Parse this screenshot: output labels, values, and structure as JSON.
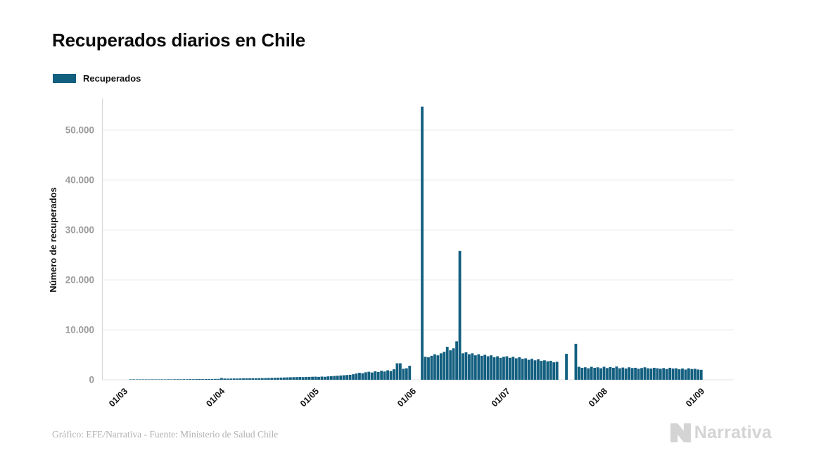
{
  "title": "Recuperados diarios en Chile",
  "legend": {
    "label": "Recuperados",
    "swatch_color": "#135F80"
  },
  "footer": {
    "credit": "Gráfico: EFE/Narrativa - Fuente: Ministerio de Salud Chile"
  },
  "logo": {
    "text": "Narrativa"
  },
  "chart_data": {
    "type": "bar",
    "title": "Recuperados diarios en Chile",
    "xlabel": "",
    "ylabel": "Número de recuperados",
    "series_name": "Recuperados",
    "bar_color": "#135F80",
    "grid": true,
    "legend_position": "top-left",
    "ylim": [
      0,
      56300
    ],
    "y_ticks": [
      0,
      10000,
      20000,
      30000,
      40000,
      50000
    ],
    "y_tick_labels": [
      "0",
      "10.000",
      "20.000",
      "30.000",
      "40.000",
      "50.000"
    ],
    "x_unit": "day",
    "x_range": [
      "01/03",
      "01/09"
    ],
    "x_tick_labels": [
      "01/03",
      "01/04",
      "01/05",
      "01/06",
      "01/07",
      "01/08",
      "01/09"
    ],
    "x_tick_indices": [
      0,
      31,
      61,
      92,
      122,
      153,
      184
    ],
    "values": [
      0,
      0,
      60,
      40,
      50,
      60,
      50,
      70,
      60,
      80,
      70,
      80,
      90,
      80,
      100,
      90,
      100,
      110,
      100,
      120,
      110,
      130,
      120,
      130,
      140,
      130,
      150,
      140,
      160,
      170,
      180,
      350,
      250,
      230,
      240,
      260,
      250,
      270,
      280,
      290,
      300,
      310,
      300,
      320,
      330,
      340,
      360,
      380,
      400,
      420,
      440,
      460,
      480,
      500,
      520,
      540,
      560,
      530,
      560,
      580,
      600,
      620,
      580,
      640,
      600,
      680,
      720,
      760,
      800,
      850,
      900,
      950,
      1000,
      1100,
      1250,
      1400,
      1300,
      1500,
      1600,
      1450,
      1700,
      1550,
      1800,
      1650,
      1900,
      1750,
      2100,
      3300,
      3300,
      2200,
      2300,
      2800,
      0,
      0,
      0,
      54700,
      4600,
      4500,
      4800,
      5100,
      4900,
      5300,
      5600,
      6600,
      5900,
      6300,
      7700,
      25800,
      5300,
      5500,
      5100,
      5300,
      4900,
      5100,
      4800,
      5000,
      4700,
      4900,
      4500,
      4700,
      4400,
      4600,
      4700,
      4400,
      4600,
      4300,
      4500,
      4200,
      4300,
      4000,
      4200,
      3900,
      4100,
      3800,
      3900,
      3700,
      3800,
      3500,
      3600,
      0,
      0,
      5200,
      0,
      0,
      7200,
      2600,
      2400,
      2500,
      2300,
      2600,
      2400,
      2500,
      2300,
      2600,
      2350,
      2550,
      2400,
      2650,
      2300,
      2450,
      2250,
      2500,
      2350,
      2400,
      2200,
      2350,
      2500,
      2300,
      2250,
      2400,
      2300,
      2200,
      2350,
      2150,
      2400,
      2250,
      2300,
      2100,
      2250,
      2050,
      2300,
      2150,
      2200,
      2050,
      2000
    ]
  }
}
